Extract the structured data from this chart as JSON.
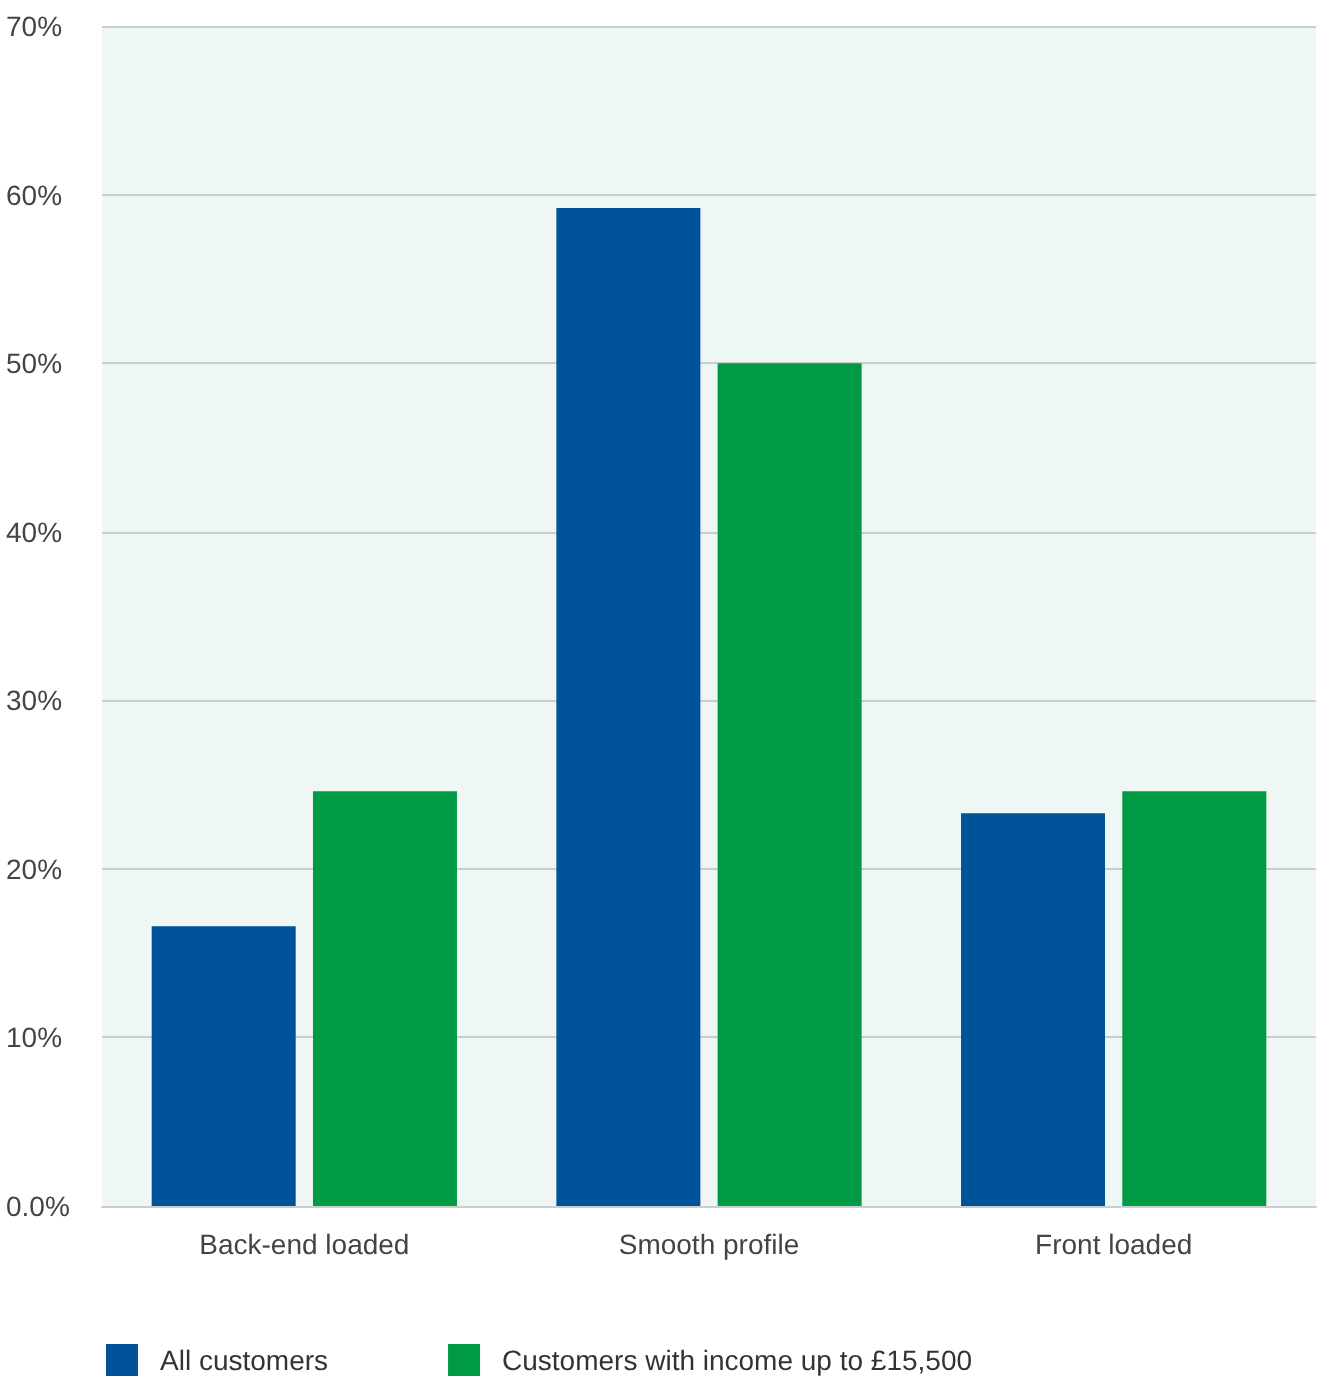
{
  "chart_data": {
    "type": "bar",
    "categories": [
      "Back-end loaded",
      "Smooth profile",
      "Front loaded"
    ],
    "series": [
      {
        "name": "All customers",
        "color": "#00529b",
        "values": [
          16.6,
          59.2,
          23.3
        ]
      },
      {
        "name": "Customers with income up to £15,500",
        "color": "#009a44",
        "values": [
          24.6,
          50,
          24.6
        ]
      }
    ],
    "ylim": [
      0,
      70
    ],
    "yticks": [
      {
        "value": 0,
        "label": "0.0%"
      },
      {
        "value": 10,
        "label": "10%"
      },
      {
        "value": 20,
        "label": "20%"
      },
      {
        "value": 30,
        "label": "30%"
      },
      {
        "value": 40,
        "label": "40%"
      },
      {
        "value": 50,
        "label": "50%"
      },
      {
        "value": 60,
        "label": "60%"
      },
      {
        "value": 70,
        "label": "70%"
      }
    ],
    "grid": "y",
    "legend": "bottom left"
  }
}
